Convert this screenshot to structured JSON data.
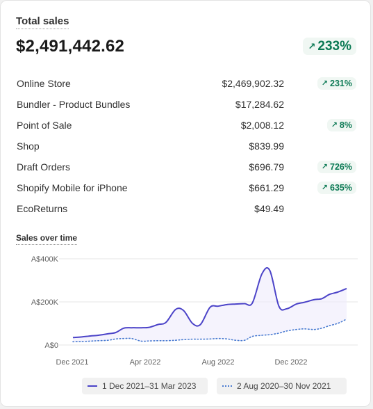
{
  "card": {
    "title": "Total sales",
    "total": "$2,491,442.62",
    "total_change": "233%",
    "rows": [
      {
        "name": "Online Store",
        "amount": "$2,469,902.32",
        "change": "231%"
      },
      {
        "name": "Bundler - Product Bundles",
        "amount": "$17,284.62",
        "change": ""
      },
      {
        "name": "Point of Sale",
        "amount": "$2,008.12",
        "change": "8%"
      },
      {
        "name": "Shop",
        "amount": "$839.99",
        "change": ""
      },
      {
        "name": "Draft Orders",
        "amount": "$696.79",
        "change": "726%"
      },
      {
        "name": "Shopify Mobile for iPhone",
        "amount": "$661.29",
        "change": "635%"
      },
      {
        "name": "EcoReturns",
        "amount": "$49.49",
        "change": ""
      }
    ]
  },
  "colors": {
    "positive": "#0c7a55",
    "positive_bg": "#f0f7f3",
    "current_series": "#4b43c8",
    "previous_series": "#4a7bd1"
  },
  "icons": {
    "change": "arrow-up-right-icon"
  },
  "chart_data": {
    "type": "line",
    "title": "Sales over time",
    "x_tick_labels": [
      "Dec 2021",
      "Apr 2022",
      "Aug 2022",
      "Dec 2022"
    ],
    "y_tick_labels": [
      "A$400K",
      "A$200K",
      "A$0"
    ],
    "ylim": [
      0,
      400000
    ],
    "grid": true,
    "legend_position": "bottom",
    "series": [
      {
        "name": "1 Dec 2021–31 Mar 2023",
        "style": "solid",
        "x": [
          "2021-12-01",
          "2021-12-15",
          "2022-01-01",
          "2022-01-15",
          "2022-02-01",
          "2022-02-15",
          "2022-03-01",
          "2022-03-15",
          "2022-04-01",
          "2022-04-15",
          "2022-05-01",
          "2022-05-15",
          "2022-06-01",
          "2022-06-15",
          "2022-07-01",
          "2022-07-15",
          "2022-08-01",
          "2022-08-15",
          "2022-09-01",
          "2022-09-15",
          "2022-10-01",
          "2022-10-15",
          "2022-11-01",
          "2022-11-15",
          "2022-12-01",
          "2022-12-15",
          "2023-01-01",
          "2023-01-15",
          "2023-02-01",
          "2023-02-15",
          "2023-03-01",
          "2023-03-15",
          "2023-03-31"
        ],
        "values": [
          35000,
          37000,
          42000,
          45000,
          52000,
          58000,
          78000,
          80000,
          80000,
          82000,
          95000,
          105000,
          165000,
          160000,
          100000,
          95000,
          175000,
          180000,
          188000,
          190000,
          192000,
          195000,
          330000,
          345000,
          180000,
          168000,
          190000,
          198000,
          210000,
          215000,
          235000,
          245000,
          262000
        ]
      },
      {
        "name": "2 Aug 2020–30 Nov 2021",
        "style": "dotted",
        "x": [
          "2021-12-01",
          "2021-12-15",
          "2022-01-01",
          "2022-01-15",
          "2022-02-01",
          "2022-02-15",
          "2022-03-01",
          "2022-03-15",
          "2022-04-01",
          "2022-04-15",
          "2022-05-01",
          "2022-05-15",
          "2022-06-01",
          "2022-06-15",
          "2022-07-01",
          "2022-07-15",
          "2022-08-01",
          "2022-08-15",
          "2022-09-01",
          "2022-09-15",
          "2022-10-01",
          "2022-10-15",
          "2022-11-01",
          "2022-11-15",
          "2022-12-01",
          "2022-12-15",
          "2023-01-01",
          "2023-01-15",
          "2023-02-01",
          "2023-02-15",
          "2023-03-01",
          "2023-03-15",
          "2023-03-31"
        ],
        "values": [
          15000,
          16000,
          18000,
          20000,
          22000,
          28000,
          30000,
          30000,
          18000,
          19000,
          20000,
          20000,
          22000,
          25000,
          27000,
          27000,
          28000,
          30000,
          28000,
          22000,
          22000,
          40000,
          45000,
          48000,
          55000,
          65000,
          72000,
          75000,
          72000,
          78000,
          90000,
          100000,
          120000
        ]
      }
    ]
  }
}
